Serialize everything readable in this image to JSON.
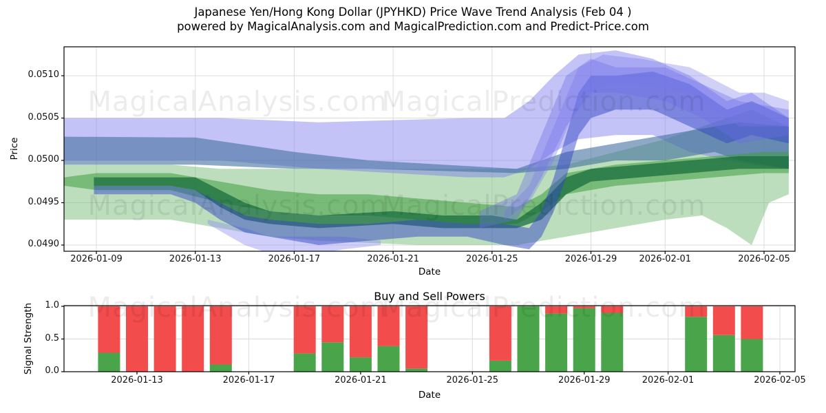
{
  "figure": {
    "title_line1": "Japanese Yen/Hong Kong Dollar (JPYHKD) Price Wave Trend Analysis (Feb 04 )",
    "title_line2": "powered by MagicalAnalysis.com and MagicalPrediction.com and Predict-Price.com",
    "background_color": "#ffffff",
    "grid_color": "#dcdcdc",
    "spine_color": "#000000"
  },
  "watermark": {
    "left_text": "MagicalAnalysis.com",
    "right_text": "MagicalPrediction.com",
    "opacity": 0.075
  },
  "chart_data": [
    {
      "id": "price_wave",
      "type": "area",
      "title": "Japanese Yen/Hong Kong Dollar (JPYHKD) Price Wave Trend Analysis (Feb 04 )",
      "xlabel": "Date",
      "ylabel": "Price",
      "grid": true,
      "legend_position": "none",
      "ylim": [
        0.04885,
        0.05135
      ],
      "xlim": [
        "2026-01-08",
        "2026-02-06"
      ],
      "yticks": [
        {
          "value": 0.049,
          "label": "0.0490"
        },
        {
          "value": 0.0495,
          "label": "0.0495"
        },
        {
          "value": 0.05,
          "label": "0.0500"
        },
        {
          "value": 0.0505,
          "label": "0.0505"
        },
        {
          "value": 0.051,
          "label": "0.0510"
        }
      ],
      "xticks": [
        {
          "date": "2026-01-09",
          "label": "2026-01-09"
        },
        {
          "date": "2026-01-13",
          "label": "2026-01-13"
        },
        {
          "date": "2026-01-17",
          "label": "2026-01-17"
        },
        {
          "date": "2026-01-21",
          "label": "2026-01-21"
        },
        {
          "date": "2026-01-25",
          "label": "2026-01-25"
        },
        {
          "date": "2026-01-29",
          "label": "2026-01-29"
        },
        {
          "date": "2026-02-01",
          "label": "2026-02-01"
        },
        {
          "date": "2026-02-05",
          "label": "2026-02-05"
        }
      ],
      "bands": [
        {
          "name": "light-green-envelope",
          "color": "#74b974",
          "opacity": 0.48,
          "days": [
            7.7,
            12,
            14,
            16,
            18,
            22,
            26,
            28,
            30,
            32,
            33.5,
            34.5,
            35.5,
            36.2,
            37
          ],
          "hi": [
            0.04995,
            0.04995,
            0.0499,
            0.0499,
            0.0499,
            0.0499,
            0.0499,
            0.04995,
            0.0501,
            0.05025,
            0.0504,
            0.0505,
            0.0506,
            0.0505,
            0.0504
          ],
          "lo": [
            0.0493,
            0.0493,
            0.0492,
            0.0491,
            0.04905,
            0.049,
            0.049,
            0.0491,
            0.0492,
            0.0493,
            0.04935,
            0.0492,
            0.049,
            0.0495,
            0.0496
          ]
        },
        {
          "name": "violet-broad-envelope",
          "color": "#7b7bee",
          "opacity": 0.45,
          "days": [
            7.7,
            14,
            18,
            24,
            25.5,
            26.5,
            27.5,
            28.5,
            30,
            31.5,
            33,
            34.5,
            35.5,
            37
          ],
          "hi": [
            0.0505,
            0.0505,
            0.05045,
            0.0505,
            0.0505,
            0.0507,
            0.051,
            0.05125,
            0.0513,
            0.0512,
            0.051,
            0.0507,
            0.0508,
            0.0505
          ],
          "lo": [
            0.05,
            0.05,
            0.0499,
            0.0498,
            0.0498,
            0.0499,
            0.0501,
            0.05025,
            0.0503,
            0.0503,
            0.0501,
            0.05,
            0.04995,
            0.0499
          ]
        },
        {
          "name": "steel-blue-band",
          "color": "#42709e",
          "opacity": 0.6,
          "days": [
            7.7,
            13,
            17,
            20,
            26,
            28,
            30,
            32,
            34,
            35,
            37
          ],
          "hi": [
            0.05028,
            0.05027,
            0.0501,
            0.05,
            0.0499,
            0.0501,
            0.0502,
            0.0503,
            0.0504,
            0.05045,
            0.0504
          ],
          "lo": [
            0.04995,
            0.04995,
            0.0499,
            0.0499,
            0.04985,
            0.0499,
            0.05,
            0.05,
            0.0501,
            0.05,
            0.0499
          ]
        },
        {
          "name": "violet-low-dip",
          "color": "#8d8df2",
          "opacity": 0.42,
          "days": [
            13.5,
            15,
            16,
            17,
            18,
            19,
            20.5
          ],
          "hi": [
            0.0493,
            0.0492,
            0.0491,
            0.0491,
            0.0491,
            0.0491,
            0.04905
          ],
          "lo": [
            0.04925,
            0.049,
            0.0489,
            0.04885,
            0.0489,
            0.04895,
            0.049
          ]
        },
        {
          "name": "medium-green-band",
          "color": "#3f9e3f",
          "opacity": 0.55,
          "days": [
            7.7,
            9,
            12,
            14,
            16,
            18,
            20,
            22,
            24,
            26,
            27,
            28,
            30,
            32,
            34,
            36,
            37
          ],
          "hi": [
            0.0498,
            0.04985,
            0.04985,
            0.04975,
            0.04965,
            0.0496,
            0.0496,
            0.04955,
            0.0495,
            0.04945,
            0.0496,
            0.04985,
            0.04995,
            0.05,
            0.05005,
            0.0501,
            0.0501
          ],
          "lo": [
            0.0497,
            0.04965,
            0.04965,
            0.0495,
            0.0494,
            0.04935,
            0.04935,
            0.0493,
            0.04925,
            0.04925,
            0.0494,
            0.0496,
            0.0497,
            0.04975,
            0.0498,
            0.04985,
            0.04985
          ]
        },
        {
          "name": "dark-green-core",
          "color": "#156b3b",
          "opacity": 0.72,
          "days": [
            8.9,
            12,
            13,
            14,
            15,
            16,
            18,
            21,
            23,
            25,
            26,
            27,
            28,
            29,
            31,
            33,
            35,
            37
          ],
          "hi": [
            0.0498,
            0.0498,
            0.0498,
            0.04965,
            0.0495,
            0.0494,
            0.04935,
            0.0494,
            0.04935,
            0.04935,
            0.0493,
            0.0495,
            0.0498,
            0.0499,
            0.04995,
            0.05,
            0.05005,
            0.05005
          ],
          "lo": [
            0.0497,
            0.0497,
            0.04965,
            0.04945,
            0.0493,
            0.04925,
            0.0492,
            0.04925,
            0.0492,
            0.0492,
            0.0492,
            0.0493,
            0.0496,
            0.04975,
            0.0498,
            0.04985,
            0.0499,
            0.0499
          ]
        },
        {
          "name": "dark-blue-core",
          "color": "#3143c4",
          "opacity": 0.48,
          "days": [
            8.9,
            12,
            13,
            14,
            15,
            16,
            18,
            20,
            22,
            24,
            25.5,
            26.5,
            27,
            27.5,
            28,
            28.5,
            29,
            30,
            31.5,
            33,
            34.5,
            35.5,
            37
          ],
          "hi": [
            0.0497,
            0.0497,
            0.04965,
            0.0495,
            0.04935,
            0.0493,
            0.04925,
            0.04925,
            0.0493,
            0.04925,
            0.04925,
            0.0492,
            0.0494,
            0.0498,
            0.0503,
            0.0508,
            0.051,
            0.051,
            0.05105,
            0.0509,
            0.0506,
            0.0507,
            0.0505
          ],
          "lo": [
            0.0496,
            0.0496,
            0.0495,
            0.0493,
            0.04915,
            0.0491,
            0.049,
            0.04905,
            0.0491,
            0.0491,
            0.049,
            0.04895,
            0.0491,
            0.0494,
            0.0498,
            0.0503,
            0.0505,
            0.0506,
            0.0506,
            0.0504,
            0.0502,
            0.0503,
            0.0502
          ]
        },
        {
          "name": "violet-rise-streak-1",
          "color": "#6b6be8",
          "opacity": 0.38,
          "days": [
            24.5,
            26,
            27,
            28,
            29,
            30,
            32,
            33.5,
            35,
            37
          ],
          "hi": [
            0.0494,
            0.0496,
            0.0503,
            0.051,
            0.0512,
            0.0511,
            0.0511,
            0.0509,
            0.0507,
            0.0506
          ],
          "lo": [
            0.0492,
            0.0493,
            0.0498,
            0.0504,
            0.0508,
            0.0508,
            0.0507,
            0.0505,
            0.0502,
            0.0503
          ]
        },
        {
          "name": "violet-rise-streak-2",
          "color": "#7878ea",
          "opacity": 0.34,
          "days": [
            25.5,
            26.5,
            27.5,
            28.5,
            29.5,
            31,
            33,
            35,
            36,
            37
          ],
          "hi": [
            0.0494,
            0.0497,
            0.0504,
            0.0511,
            0.05125,
            0.0512,
            0.0511,
            0.0508,
            0.0508,
            0.0507
          ],
          "lo": [
            0.0493,
            0.0495,
            0.05,
            0.0507,
            0.0509,
            0.0509,
            0.0508,
            0.0504,
            0.0504,
            0.0504
          ]
        }
      ]
    },
    {
      "id": "buy_sell_powers",
      "type": "bar",
      "title": "Buy and Sell Powers",
      "xlabel": "Date",
      "ylabel": "Signal Strength",
      "grid": true,
      "stacked": true,
      "ylim": [
        0,
        1
      ],
      "xlim": [
        "2026-01-10",
        "2026-02-06"
      ],
      "yticks": [
        {
          "value": 0.0,
          "label": "0.0"
        },
        {
          "value": 0.5,
          "label": "0.5"
        },
        {
          "value": 1.0,
          "label": "1.0"
        }
      ],
      "xticks": [
        {
          "date": "2026-01-13",
          "label": "2026-01-13"
        },
        {
          "date": "2026-01-17",
          "label": "2026-01-17"
        },
        {
          "date": "2026-01-21",
          "label": "2026-01-21"
        },
        {
          "date": "2026-01-25",
          "label": "2026-01-25"
        },
        {
          "date": "2026-01-29",
          "label": "2026-01-29"
        },
        {
          "date": "2026-02-01",
          "label": "2026-02-01"
        },
        {
          "date": "2026-02-05",
          "label": "2026-02-05"
        }
      ],
      "series_colors": {
        "buy": "#4aa54a",
        "sell": "#f24c4c"
      },
      "bars": [
        {
          "date": "2026-01-12",
          "buy": 0.29,
          "sell": 0.71
        },
        {
          "date": "2026-01-13",
          "buy": 0.0,
          "sell": 1.0
        },
        {
          "date": "2026-01-14",
          "buy": 0.0,
          "sell": 1.0
        },
        {
          "date": "2026-01-15",
          "buy": 0.0,
          "sell": 1.0
        },
        {
          "date": "2026-01-16",
          "buy": 0.11,
          "sell": 0.89
        },
        {
          "date": "2026-01-19",
          "buy": 0.28,
          "sell": 0.72
        },
        {
          "date": "2026-01-20",
          "buy": 0.45,
          "sell": 0.55
        },
        {
          "date": "2026-01-21",
          "buy": 0.22,
          "sell": 0.78
        },
        {
          "date": "2026-01-22",
          "buy": 0.39,
          "sell": 0.61
        },
        {
          "date": "2026-01-23",
          "buy": 0.05,
          "sell": 0.95
        },
        {
          "date": "2026-01-26",
          "buy": 0.17,
          "sell": 0.83
        },
        {
          "date": "2026-01-27",
          "buy": 1.0,
          "sell": 0.0
        },
        {
          "date": "2026-01-28",
          "buy": 0.89,
          "sell": 0.11
        },
        {
          "date": "2026-01-29",
          "buy": 0.97,
          "sell": 0.03
        },
        {
          "date": "2026-01-30",
          "buy": 0.9,
          "sell": 0.1
        },
        {
          "date": "2026-02-02",
          "buy": 0.84,
          "sell": 0.16
        },
        {
          "date": "2026-02-03",
          "buy": 0.56,
          "sell": 0.44
        },
        {
          "date": "2026-02-04",
          "buy": 0.5,
          "sell": 0.5
        }
      ]
    }
  ]
}
